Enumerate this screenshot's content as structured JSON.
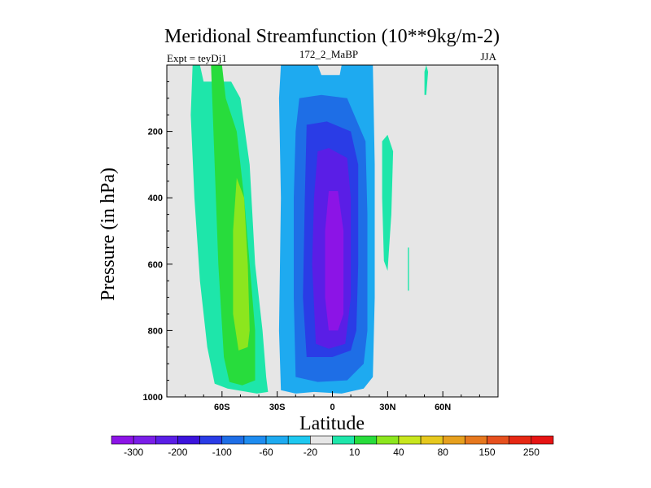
{
  "chart_data": {
    "type": "contour",
    "title": "Meridional Streamfunction (10**9kg/m-2)",
    "left_label": "Expt = teyDj1",
    "center_label": "172_2_MaBP",
    "right_label": "JJA",
    "xlabel": "Latitude",
    "ylabel": "Pressure (in hPa)",
    "xlim": [
      -90,
      90
    ],
    "ylim": [
      1000,
      0
    ],
    "x_ticks": [
      {
        "value": -60,
        "label": "60S"
      },
      {
        "value": -30,
        "label": "30S"
      },
      {
        "value": 0,
        "label": "0"
      },
      {
        "value": 30,
        "label": "30N"
      },
      {
        "value": 60,
        "label": "60N"
      }
    ],
    "y_ticks": [
      {
        "value": 200,
        "label": "200"
      },
      {
        "value": 400,
        "label": "400"
      },
      {
        "value": 600,
        "label": "600"
      },
      {
        "value": 800,
        "label": "800"
      },
      {
        "value": 1000,
        "label": "1000"
      }
    ],
    "background_color": "#e6e6e6",
    "colorbar": {
      "colors": [
        "#8c14e6",
        "#7a1ee8",
        "#5a1ee6",
        "#3c14dc",
        "#2a3ce6",
        "#1e6ee6",
        "#1e8cf0",
        "#1eaaf0",
        "#1ec8f0",
        "#e6e6e6",
        "#1ee6aa",
        "#28dc3c",
        "#8ce61e",
        "#c8e61e",
        "#e6c81e",
        "#e6a01e",
        "#e6781e",
        "#e6501e",
        "#e62814",
        "#e61414"
      ],
      "labels": [
        "-300",
        "-200",
        "-100",
        "-60",
        "-20",
        "10",
        "40",
        "80",
        "150",
        "250"
      ]
    },
    "regions": [
      {
        "name": "SH positive cell",
        "level": 10,
        "points": [
          [
            -76,
            0
          ],
          [
            -72,
            0
          ],
          [
            -70,
            50
          ],
          [
            -55,
            50
          ],
          [
            -50,
            100
          ],
          [
            -45,
            300
          ],
          [
            -42,
            600
          ],
          [
            -38,
            800
          ],
          [
            -36,
            940
          ],
          [
            -35,
            985
          ],
          [
            -41,
            990
          ],
          [
            -57,
            975
          ],
          [
            -64,
            960
          ],
          [
            -68,
            850
          ],
          [
            -72,
            650
          ],
          [
            -75,
            400
          ],
          [
            -77,
            150
          ]
        ]
      },
      {
        "name": "SH positive cell",
        "level": 40,
        "points": [
          [
            -66,
            0
          ],
          [
            -60,
            0
          ],
          [
            -58,
            100
          ],
          [
            -52,
            200
          ],
          [
            -48,
            400
          ],
          [
            -45,
            600
          ],
          [
            -42,
            800
          ],
          [
            -42,
            950
          ],
          [
            -49,
            965
          ],
          [
            -56,
            955
          ],
          [
            -59,
            880
          ],
          [
            -62,
            600
          ],
          [
            -64,
            300
          ]
        ]
      },
      {
        "name": "SH positive cell",
        "level": 80,
        "points": [
          [
            -52,
            340
          ],
          [
            -48,
            400
          ],
          [
            -46,
            600
          ],
          [
            -45,
            800
          ],
          [
            -46,
            850
          ],
          [
            -51,
            860
          ],
          [
            -54,
            750
          ],
          [
            -54,
            500
          ]
        ]
      },
      {
        "name": "Hadley winter cell",
        "level": -20,
        "points": [
          [
            -28,
            0
          ],
          [
            -8,
            0
          ],
          [
            -6,
            30
          ],
          [
            4,
            30
          ],
          [
            5,
            0
          ],
          [
            22,
            0
          ],
          [
            23,
            300
          ],
          [
            23,
            700
          ],
          [
            22,
            940
          ],
          [
            17,
            975
          ],
          [
            5,
            990
          ],
          [
            -10,
            985
          ],
          [
            -20,
            990
          ],
          [
            -28,
            980
          ],
          [
            -29,
            800
          ],
          [
            -28,
            400
          ],
          [
            -29,
            100
          ]
        ]
      },
      {
        "name": "Hadley winter cell",
        "level": -60,
        "points": [
          [
            -18,
            100
          ],
          [
            -6,
            90
          ],
          [
            8,
            100
          ],
          [
            18,
            230
          ],
          [
            19,
            450
          ],
          [
            19,
            800
          ],
          [
            17,
            900
          ],
          [
            8,
            950
          ],
          [
            -8,
            955
          ],
          [
            -20,
            940
          ],
          [
            -21,
            700
          ],
          [
            -21,
            400
          ],
          [
            -20,
            200
          ]
        ]
      },
      {
        "name": "Hadley winter cell",
        "level": -100,
        "points": [
          [
            -14,
            180
          ],
          [
            -3,
            170
          ],
          [
            10,
            200
          ],
          [
            14,
            300
          ],
          [
            14,
            600
          ],
          [
            13,
            800
          ],
          [
            10,
            860
          ],
          [
            0,
            880
          ],
          [
            -14,
            880
          ],
          [
            -16,
            700
          ],
          [
            -15,
            400
          ]
        ]
      },
      {
        "name": "Hadley winter cell",
        "level": -200,
        "points": [
          [
            -8,
            260
          ],
          [
            -2,
            250
          ],
          [
            8,
            280
          ],
          [
            10,
            400
          ],
          [
            10,
            700
          ],
          [
            7,
            840
          ],
          [
            -2,
            855
          ],
          [
            -9,
            840
          ],
          [
            -11,
            600
          ],
          [
            -10,
            400
          ]
        ]
      },
      {
        "name": "Hadley winter cell",
        "level": -300,
        "points": [
          [
            -2,
            380
          ],
          [
            3,
            380
          ],
          [
            6,
            500
          ],
          [
            6,
            750
          ],
          [
            3,
            800
          ],
          [
            -2,
            800
          ],
          [
            -4,
            700
          ],
          [
            -4,
            500
          ]
        ]
      },
      {
        "name": "NH small cell",
        "level": 10,
        "points": [
          [
            27,
            230
          ],
          [
            30,
            210
          ],
          [
            33,
            260
          ],
          [
            32,
            450
          ],
          [
            30,
            620
          ],
          [
            28,
            590
          ],
          [
            27,
            400
          ]
        ]
      },
      {
        "name": "NH small cell",
        "level": 10,
        "points": [
          [
            50,
            20
          ],
          [
            51,
            0
          ],
          [
            52,
            20
          ],
          [
            51,
            90
          ],
          [
            50,
            90
          ]
        ]
      },
      {
        "name": "NH small cell",
        "level": 10,
        "points": [
          [
            41,
            550
          ],
          [
            41.6,
            550
          ],
          [
            41.6,
            680
          ],
          [
            41,
            680
          ]
        ]
      }
    ]
  }
}
